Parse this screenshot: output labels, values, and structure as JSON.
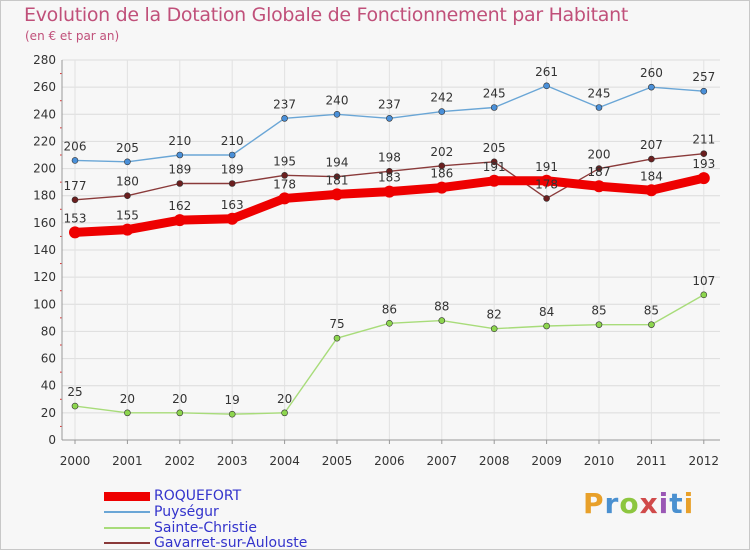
{
  "chart_data": {
    "type": "line",
    "title": "Evolution de la Dotation Globale de Fonctionnement par Habitant",
    "subtitle": "(en € et par an)",
    "xlabel": "",
    "ylabel": "",
    "categories": [
      "2000",
      "2001",
      "2002",
      "2003",
      "2004",
      "2005",
      "2006",
      "2007",
      "2008",
      "2009",
      "2010",
      "2011",
      "2012"
    ],
    "ylim": [
      0,
      280
    ],
    "yticks": [
      0,
      20,
      40,
      60,
      80,
      100,
      120,
      140,
      160,
      180,
      200,
      220,
      240,
      260,
      280
    ],
    "grid": true,
    "legend_position": "bottom-left",
    "series": [
      {
        "name": "ROQUEFORT",
        "color": "#ee0000",
        "point_color": "#ee0000",
        "label_color": "#333333",
        "weight": "heavy",
        "values": [
          153,
          155,
          162,
          163,
          178,
          181,
          183,
          186,
          191,
          191,
          187,
          184,
          193
        ]
      },
      {
        "name": "Puységur",
        "color": "#6aa6d6",
        "point_color": "#4a90d9",
        "label_color": "#333333",
        "weight": "thin",
        "values": [
          206,
          205,
          210,
          210,
          237,
          240,
          237,
          242,
          245,
          261,
          245,
          260,
          257
        ]
      },
      {
        "name": "Sainte-Christie",
        "color": "#a8dc7a",
        "point_color": "#8dd64e",
        "label_color": "#333333",
        "weight": "thin",
        "values": [
          25,
          20,
          20,
          19,
          20,
          75,
          86,
          88,
          82,
          84,
          85,
          85,
          107
        ]
      },
      {
        "name": "Gavarret-sur-Aulouste",
        "color": "#8a3a3a",
        "point_color": "#6b1f1f",
        "label_color": "#333333",
        "weight": "thin",
        "values": [
          177,
          180,
          189,
          189,
          195,
          194,
          198,
          202,
          205,
          178,
          200,
          207,
          211
        ]
      }
    ]
  },
  "logo": {
    "letters": [
      "P",
      "r",
      "o",
      "x",
      "i",
      "t",
      "i"
    ]
  }
}
